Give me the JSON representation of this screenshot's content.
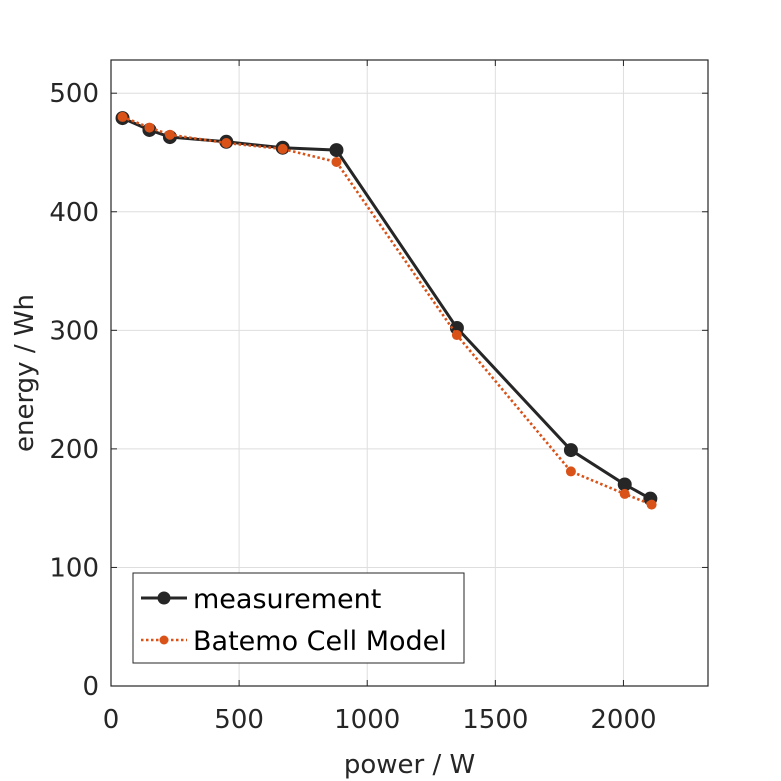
{
  "chart_data": {
    "type": "line",
    "title": "",
    "xlabel": "power / W",
    "ylabel": "energy / Wh",
    "xlim": [
      0,
      2330
    ],
    "ylim": [
      0,
      528
    ],
    "xticks": [
      0,
      500,
      1000,
      1500,
      2000
    ],
    "yticks": [
      0,
      100,
      200,
      300,
      400,
      500
    ],
    "grid": true,
    "legend_position": "bottom-left",
    "series": [
      {
        "name": "measurement",
        "color": "#262626",
        "style": "solid",
        "marker": "circle-large",
        "x": [
          45,
          150,
          230,
          450,
          670,
          880,
          1350,
          1795,
          2005,
          2105
        ],
        "y": [
          479,
          469,
          463,
          459,
          454,
          452,
          302,
          199,
          170,
          158
        ]
      },
      {
        "name": "Batemo Cell Model",
        "color": "#d95319",
        "style": "dotted",
        "marker": "circle-small",
        "x": [
          45,
          150,
          230,
          450,
          670,
          880,
          1350,
          1795,
          2005,
          2110
        ],
        "y": [
          480,
          471,
          465,
          458,
          453,
          442,
          296,
          181,
          162,
          153
        ]
      }
    ]
  }
}
